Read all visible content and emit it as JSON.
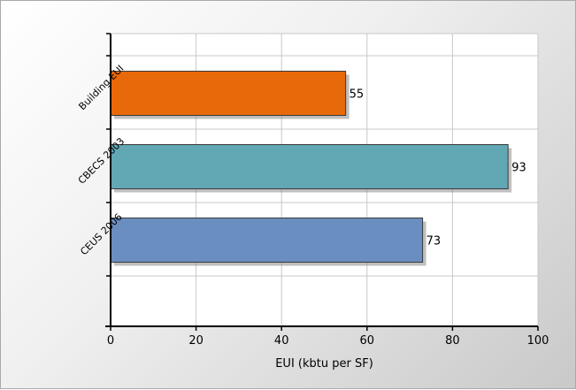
{
  "chart_data": {
    "type": "bar",
    "orientation": "horizontal",
    "categories": [
      "Building EUI",
      "CBECS 2003",
      "CEUS 2006"
    ],
    "values": [
      55,
      93,
      73
    ],
    "colors": [
      "#e8690a",
      "#62a7b4",
      "#6a8ec0"
    ],
    "xlabel": "EUI (kbtu per SF)",
    "ylabel": "",
    "xlim": [
      0,
      100
    ],
    "xticks": [
      "0",
      "20",
      "40",
      "60",
      "80",
      "100"
    ],
    "grid": true,
    "data_labels": [
      "55",
      "93",
      "73"
    ]
  }
}
